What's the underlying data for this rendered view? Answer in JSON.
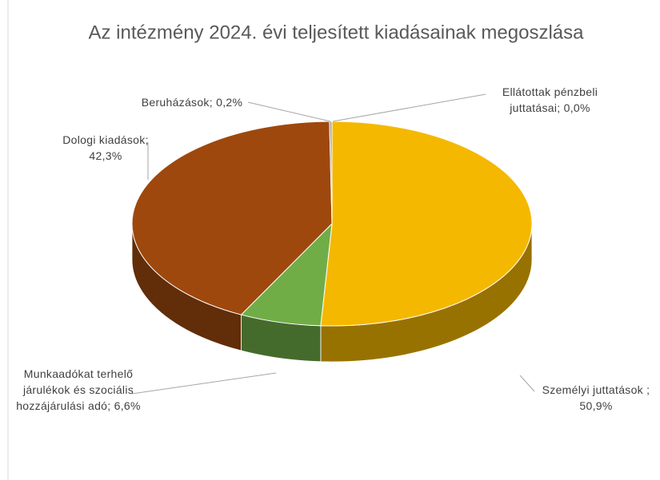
{
  "chart_data": {
    "type": "pie",
    "title": "Az intézmény 2024. évi teljesített kiadásainak megoszlása",
    "categories": [
      "Személyi juttatások ;",
      "Munkaadókat terhelő járulékok és szociális hozzájárulási adó;",
      "Dologi kiadások;",
      "Beruházások;",
      "Ellátottak pénzbeli juttatásai;"
    ],
    "values": [
      50.9,
      6.6,
      42.3,
      0.2,
      0.0
    ],
    "value_labels": [
      "50,9%",
      "6,6%",
      "42,3%",
      "0,2%",
      "0,0%"
    ],
    "colors": [
      "#f5b800",
      "#70ad47",
      "#9e480e",
      "#a5a5a5",
      "#4472c4"
    ]
  }
}
